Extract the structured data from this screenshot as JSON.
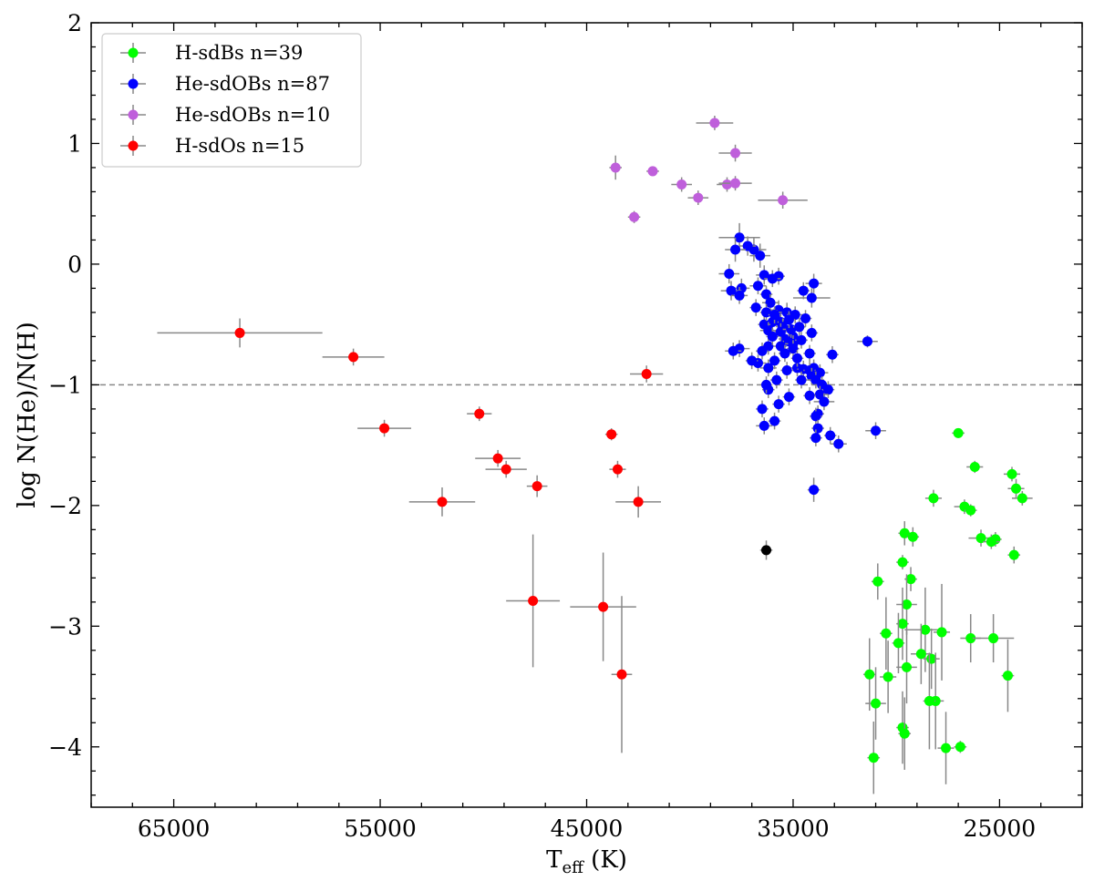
{
  "chart_data": {
    "type": "scatter",
    "title": "",
    "xlabel": "T",
    "xlabel_sub": "eff",
    "xlabel_suffix": " (K)",
    "ylabel": "log N(He)/N(H)",
    "xlim": [
      69000,
      21000
    ],
    "ylim": [
      -4.5,
      2
    ],
    "xticks": [
      65000,
      55000,
      45000,
      35000,
      25000
    ],
    "xtick_labels": [
      "65000",
      "55000",
      "45000",
      "35000",
      "25000"
    ],
    "yticks": [
      -4,
      -3,
      -2,
      -1,
      0,
      1,
      2
    ],
    "ytick_labels": [
      "−4",
      "−3",
      "−2",
      "−1",
      "0",
      "1",
      "2"
    ],
    "hline": -1,
    "legend_position": "top-left",
    "errorbar_color": "#888888",
    "series": [
      {
        "name": "H-sdBs n=39",
        "color": "#00ff00",
        "points": [
          [
            27000,
            -1.4,
            300,
            0.04
          ],
          [
            26200,
            -1.68,
            400,
            0.05
          ],
          [
            24400,
            -1.74,
            400,
            0.06
          ],
          [
            24200,
            -1.86,
            400,
            0.08
          ],
          [
            23900,
            -1.94,
            500,
            0.06
          ],
          [
            28200,
            -1.94,
            400,
            0.07
          ],
          [
            26700,
            -2.01,
            500,
            0.06
          ],
          [
            26400,
            -2.04,
            300,
            0.05
          ],
          [
            25900,
            -2.27,
            600,
            0.07
          ],
          [
            25200,
            -2.28,
            300,
            0.06
          ],
          [
            25400,
            -2.3,
            400,
            0.06
          ],
          [
            24300,
            -2.41,
            300,
            0.07
          ],
          [
            29600,
            -2.23,
            300,
            0.1
          ],
          [
            29200,
            -2.26,
            300,
            0.08
          ],
          [
            29700,
            -2.47,
            300,
            0.06
          ],
          [
            29300,
            -2.61,
            300,
            0.1
          ],
          [
            30900,
            -2.63,
            300,
            0.15
          ],
          [
            29500,
            -2.82,
            500,
            0.25
          ],
          [
            29700,
            -2.98,
            300,
            0.3
          ],
          [
            30500,
            -3.06,
            300,
            0.3
          ],
          [
            28600,
            -3.03,
            1000,
            0.35
          ],
          [
            27800,
            -3.05,
            400,
            0.4
          ],
          [
            26400,
            -3.1,
            500,
            0.2
          ],
          [
            25300,
            -3.1,
            1000,
            0.2
          ],
          [
            29900,
            -3.14,
            300,
            0.25
          ],
          [
            31300,
            -3.4,
            300,
            0.3
          ],
          [
            30400,
            -3.42,
            400,
            0.3
          ],
          [
            29500,
            -3.34,
            500,
            0.3
          ],
          [
            28800,
            -3.23,
            500,
            0.25
          ],
          [
            28300,
            -3.27,
            400,
            0.25
          ],
          [
            24600,
            -3.41,
            300,
            0.3
          ],
          [
            31000,
            -3.64,
            500,
            0.3
          ],
          [
            28100,
            -3.62,
            400,
            0.4
          ],
          [
            28400,
            -3.62,
            300,
            0.4
          ],
          [
            29700,
            -3.84,
            300,
            0.3
          ],
          [
            29600,
            -3.89,
            300,
            0.3
          ],
          [
            31100,
            -4.09,
            300,
            0.3
          ],
          [
            27600,
            -4.01,
            400,
            0.3
          ],
          [
            26900,
            -4.0,
            300,
            0.05
          ]
        ]
      },
      {
        "name": "He-sdOBs n=87",
        "color": "#0000ff",
        "points": [
          [
            37600,
            0.22,
            1000,
            0.12
          ],
          [
            36900,
            0.12,
            600,
            0.1
          ],
          [
            36600,
            0.07,
            500,
            0.1
          ],
          [
            37200,
            0.15,
            400,
            0.08
          ],
          [
            37800,
            0.12,
            500,
            0.1
          ],
          [
            36400,
            -0.09,
            400,
            0.08
          ],
          [
            35700,
            -0.1,
            300,
            0.07
          ],
          [
            36000,
            -0.12,
            400,
            0.07
          ],
          [
            38100,
            -0.08,
            500,
            0.08
          ],
          [
            37500,
            -0.2,
            400,
            0.08
          ],
          [
            38000,
            -0.22,
            500,
            0.08
          ],
          [
            37600,
            -0.26,
            400,
            0.07
          ],
          [
            36700,
            -0.18,
            400,
            0.07
          ],
          [
            36300,
            -0.25,
            300,
            0.07
          ],
          [
            36100,
            -0.32,
            400,
            0.07
          ],
          [
            34000,
            -0.16,
            400,
            0.08
          ],
          [
            34500,
            -0.22,
            300,
            0.07
          ],
          [
            34100,
            -0.28,
            900,
            0.08
          ],
          [
            35700,
            -0.38,
            400,
            0.08
          ],
          [
            35300,
            -0.4,
            400,
            0.08
          ],
          [
            34900,
            -0.42,
            400,
            0.07
          ],
          [
            35800,
            -0.45,
            300,
            0.07
          ],
          [
            35600,
            -0.48,
            300,
            0.07
          ],
          [
            36000,
            -0.48,
            300,
            0.07
          ],
          [
            36400,
            -0.5,
            300,
            0.07
          ],
          [
            35500,
            -0.52,
            300,
            0.07
          ],
          [
            36200,
            -0.55,
            400,
            0.07
          ],
          [
            34400,
            -0.45,
            300,
            0.07
          ],
          [
            34100,
            -0.57,
            300,
            0.07
          ],
          [
            35000,
            -0.6,
            400,
            0.07
          ],
          [
            35400,
            -0.62,
            300,
            0.07
          ],
          [
            35200,
            -0.64,
            300,
            0.07
          ],
          [
            35000,
            -0.66,
            400,
            0.07
          ],
          [
            35600,
            -0.68,
            300,
            0.07
          ],
          [
            36200,
            -0.68,
            300,
            0.07
          ],
          [
            35000,
            -0.7,
            300,
            0.07
          ],
          [
            37600,
            -0.7,
            500,
            0.07
          ],
          [
            37900,
            -0.72,
            400,
            0.07
          ],
          [
            36800,
            -0.36,
            300,
            0.07
          ],
          [
            36300,
            -0.4,
            300,
            0.07
          ],
          [
            33100,
            -0.75,
            300,
            0.07
          ],
          [
            31400,
            -0.64,
            500,
            0.05
          ],
          [
            34200,
            -0.74,
            300,
            0.07
          ],
          [
            36700,
            -0.82,
            400,
            0.07
          ],
          [
            35900,
            -0.8,
            300,
            0.07
          ],
          [
            36200,
            -0.86,
            400,
            0.07
          ],
          [
            34800,
            -0.86,
            500,
            0.07
          ],
          [
            34500,
            -0.87,
            300,
            0.07
          ],
          [
            34000,
            -0.86,
            300,
            0.07
          ],
          [
            34200,
            -0.88,
            300,
            0.07
          ],
          [
            33700,
            -0.9,
            400,
            0.07
          ],
          [
            34100,
            -0.93,
            300,
            0.07
          ],
          [
            33900,
            -0.96,
            400,
            0.07
          ],
          [
            33600,
            -1.0,
            400,
            0.07
          ],
          [
            33300,
            -1.04,
            300,
            0.07
          ],
          [
            33700,
            -1.08,
            400,
            0.07
          ],
          [
            34200,
            -1.09,
            300,
            0.07
          ],
          [
            33500,
            -1.14,
            500,
            0.07
          ],
          [
            33800,
            -1.24,
            300,
            0.07
          ],
          [
            33900,
            -1.26,
            300,
            0.07
          ],
          [
            35800,
            -0.96,
            300,
            0.07
          ],
          [
            36200,
            -1.04,
            300,
            0.07
          ],
          [
            36300,
            -1.0,
            300,
            0.07
          ],
          [
            35200,
            -1.1,
            300,
            0.07
          ],
          [
            35700,
            -1.16,
            300,
            0.07
          ],
          [
            36500,
            -1.2,
            300,
            0.07
          ],
          [
            35900,
            -1.3,
            300,
            0.07
          ],
          [
            36400,
            -1.34,
            400,
            0.07
          ],
          [
            33800,
            -1.36,
            300,
            0.07
          ],
          [
            33900,
            -1.44,
            300,
            0.07
          ],
          [
            33200,
            -1.42,
            300,
            0.07
          ],
          [
            32800,
            -1.49,
            400,
            0.07
          ],
          [
            31000,
            -1.38,
            500,
            0.07
          ],
          [
            34000,
            -1.87,
            300,
            0.1
          ],
          [
            35600,
            -0.56,
            300,
            0.07
          ],
          [
            34600,
            -0.63,
            300,
            0.07
          ],
          [
            35100,
            -0.54,
            400,
            0.07
          ],
          [
            34700,
            -0.52,
            300,
            0.07
          ],
          [
            35200,
            -0.46,
            300,
            0.07
          ],
          [
            35900,
            -0.42,
            300,
            0.07
          ],
          [
            36000,
            -0.6,
            300,
            0.07
          ],
          [
            35400,
            -0.74,
            300,
            0.07
          ],
          [
            34800,
            -0.78,
            300,
            0.07
          ],
          [
            36500,
            -0.72,
            300,
            0.07
          ],
          [
            37000,
            -0.8,
            300,
            0.07
          ],
          [
            34600,
            -0.96,
            300,
            0.07
          ],
          [
            35300,
            -0.88,
            300,
            0.07
          ]
        ]
      },
      {
        "name": "He-sdOBs n=10",
        "color": "#bf5fdb",
        "points": [
          [
            38800,
            1.17,
            900,
            0.06
          ],
          [
            37800,
            0.92,
            800,
            0.07
          ],
          [
            43600,
            0.8,
            300,
            0.1
          ],
          [
            41800,
            0.77,
            300,
            0.04
          ],
          [
            40400,
            0.66,
            500,
            0.06
          ],
          [
            38200,
            0.66,
            500,
            0.06
          ],
          [
            37800,
            0.67,
            800,
            0.06
          ],
          [
            39600,
            0.55,
            500,
            0.06
          ],
          [
            35500,
            0.53,
            1200,
            0.07
          ],
          [
            42700,
            0.39,
            300,
            0.05
          ]
        ]
      },
      {
        "name": "H-sdOs n=15",
        "color": "#ff0000",
        "points": [
          [
            61800,
            -0.57,
            4000,
            0.12
          ],
          [
            56300,
            -0.77,
            1500,
            0.07
          ],
          [
            42100,
            -0.91,
            800,
            0.07
          ],
          [
            54800,
            -1.36,
            1300,
            0.07
          ],
          [
            50200,
            -1.24,
            600,
            0.06
          ],
          [
            43800,
            -1.41,
            300,
            0.05
          ],
          [
            49300,
            -1.61,
            1100,
            0.07
          ],
          [
            48900,
            -1.7,
            1000,
            0.07
          ],
          [
            43500,
            -1.7,
            400,
            0.07
          ],
          [
            47400,
            -1.84,
            500,
            0.09
          ],
          [
            52000,
            -1.97,
            1600,
            0.12
          ],
          [
            42500,
            -1.97,
            1100,
            0.13
          ],
          [
            47600,
            -2.79,
            1300,
            0.55
          ],
          [
            44200,
            -2.84,
            1600,
            0.45
          ],
          [
            43300,
            -3.4,
            500,
            0.65
          ]
        ]
      },
      {
        "name": "",
        "color": "#000000",
        "in_legend": false,
        "points": [
          [
            36300,
            -2.37,
            300,
            0.08
          ]
        ]
      }
    ]
  }
}
